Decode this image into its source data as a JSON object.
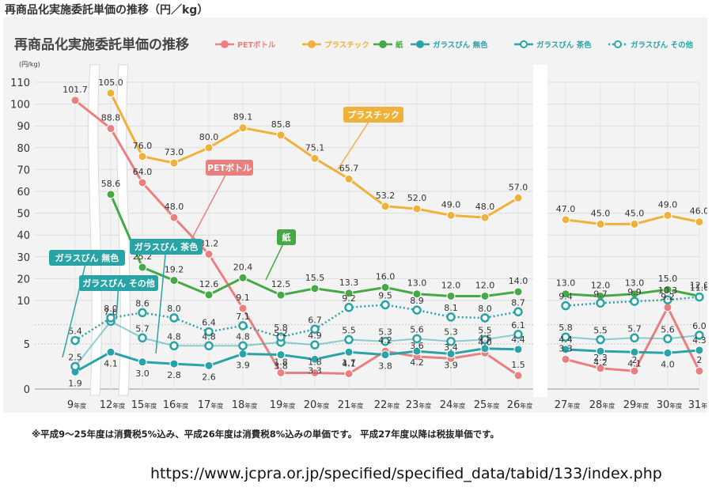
{
  "page": {
    "outer_title": "再商品化実施委託単価の推移（円／kg）",
    "footnote": "※平成9〜25年度は消費税5%込み、平成26年度は消費税8%込みの単価です。 平成27年度以降は税抜単価です。",
    "source_url": "https://www.jcpra.or.jp/specified/specified_data/tabid/133/index.php"
  },
  "chart_data": {
    "type": "line",
    "title": "再商品化実施委託単価の推移",
    "ylabel": "(円/kg)",
    "xlabel": "",
    "y_ticks": [
      0,
      5,
      10,
      20,
      30,
      40,
      50,
      60,
      70,
      80,
      90,
      100,
      110
    ],
    "y_scale": "piecewise: 0–10 expanded (0, 5, 10 equally spaced), 10–110 linear",
    "ylim": [
      0,
      110
    ],
    "grid": true,
    "legend_position": "top",
    "categories": [
      "9",
      "12",
      "15",
      "16",
      "17",
      "18",
      "19",
      "20",
      "21",
      "22",
      "23",
      "24",
      "25",
      "26",
      "27",
      "28",
      "29",
      "30",
      "31"
    ],
    "category_suffix": "年度",
    "gap_after": [
      "26"
    ],
    "axis_breaks": "between 9 and 12, between 12 and 15",
    "series": [
      {
        "name": "PETボトル",
        "color": "#e8807f",
        "marker": "filled",
        "values": [
          101.7,
          88.8,
          64.0,
          48.0,
          31.2,
          9.1,
          1.8,
          1.8,
          1.7,
          4.2,
          3.6,
          3.4,
          4.0,
          1.5,
          3.3,
          2.3,
          2,
          9.2,
          2
        ],
        "labels": [
          "101.7",
          "88.8",
          "64.0",
          "48.0",
          "31.2",
          "9.1",
          "1.8",
          "1.8",
          "1.7",
          "4.2",
          "3.6",
          "3.4",
          "4.0",
          "1.5",
          "3.3",
          "2.3",
          "2",
          "9.2",
          "2"
        ]
      },
      {
        "name": "プラスチック",
        "color": "#f0b13b",
        "marker": "filled",
        "values": [
          null,
          105.0,
          76.0,
          73.0,
          80.0,
          89.1,
          85.8,
          75.1,
          65.7,
          53.2,
          52.0,
          49.0,
          48.0,
          57.0,
          47.0,
          45.0,
          45.0,
          49.0,
          46.0
        ],
        "labels": [
          null,
          "105.0",
          "76.0",
          "73.0",
          "80.0",
          "89.1",
          "85.8",
          "75.1",
          "65.7",
          "53.2",
          "52.0",
          "49.0",
          "48.0",
          "57.0",
          "47.0",
          "45.0",
          "45.0",
          "49.0",
          "46.0"
        ]
      },
      {
        "name": "紙",
        "color": "#46a846",
        "marker": "filled",
        "values": [
          null,
          58.6,
          25.2,
          19.2,
          12.6,
          20.4,
          12.5,
          15.5,
          13.3,
          16.0,
          13.0,
          12.0,
          12.0,
          14.0,
          13.0,
          12.0,
          13.0,
          15.0,
          12.0
        ],
        "labels": [
          null,
          "58.6",
          "25.2",
          "19.2",
          "12.6",
          "20.4",
          "12.5",
          "15.5",
          "13.3",
          "16.0",
          "13.0",
          "12.0",
          "12.0",
          "14.0",
          "13.0",
          "12.0",
          "13.0",
          "15.0",
          "12.0"
        ]
      },
      {
        "name": "ガラスびん 無色",
        "color": "#2aa3a6",
        "marker": "filled",
        "values": [
          1.9,
          4.1,
          3.0,
          2.8,
          2.6,
          3.9,
          3.8,
          3.3,
          4.1,
          3.8,
          4.2,
          3.9,
          4.5,
          4.4,
          4.4,
          4.2,
          4.1,
          4.0,
          4.3
        ],
        "labels": [
          "1.9",
          "4.1",
          "3.0",
          "2.8",
          "2.6",
          "3.9",
          "3.8",
          "3.3",
          "4.1",
          "3.8",
          "4.2",
          "3.9",
          "4.5",
          "4.4",
          "4.4",
          "4.2",
          "4.1",
          "4.0",
          "4.3"
        ]
      },
      {
        "name": "ガラスびん 茶色",
        "color": "#2aa3a6",
        "marker": "open",
        "line": "solid-light",
        "values": [
          2.5,
          7.6,
          5.7,
          4.8,
          4.8,
          4.8,
          5.2,
          4.9,
          5.5,
          5.3,
          5.6,
          5.3,
          5.5,
          6.1,
          5.8,
          5.5,
          5.7,
          5.6,
          6.0
        ],
        "labels": [
          "2.5",
          "7.6",
          "5.7",
          "4.8",
          "4.8",
          "4.8",
          "5.2",
          "4.9",
          "5.5",
          "5.3",
          "5.6",
          "5.3",
          "5.5",
          "6.1",
          "5.8",
          "5.5",
          "5.7",
          "5.6",
          "6.0"
        ]
      },
      {
        "name": "ガラスびん その他",
        "color": "#2aa3a6",
        "marker": "open",
        "line": "dotted",
        "values": [
          5.4,
          8.0,
          8.6,
          8.0,
          6.4,
          7.1,
          5.8,
          6.7,
          9.2,
          9.5,
          8.9,
          8.1,
          8.0,
          8.7,
          9.4,
          9.7,
          9.9,
          10.3,
          11.6
        ],
        "labels": [
          "5.4",
          "8.0",
          "8.6",
          "8.0",
          "6.4",
          "7.1",
          "5.8",
          "6.7",
          "9.2",
          "9.5",
          "8.9",
          "8.1",
          "8.0",
          "8.7",
          "9.4",
          "9.7",
          "9.9",
          "10.3",
          "11.6"
        ]
      }
    ],
    "callouts": [
      {
        "text": "プラスチック",
        "series": "プラスチック"
      },
      {
        "text": "PETボトル",
        "series": "PETボトル"
      },
      {
        "text": "紙",
        "series": "紙"
      },
      {
        "text": "ガラスびん 茶色",
        "series": "ガラスびん 茶色"
      },
      {
        "text": "ガラスびん 無色",
        "series": "ガラスびん 無色"
      },
      {
        "text": "ガラスびん その他",
        "series": "ガラスびん その他"
      }
    ]
  }
}
